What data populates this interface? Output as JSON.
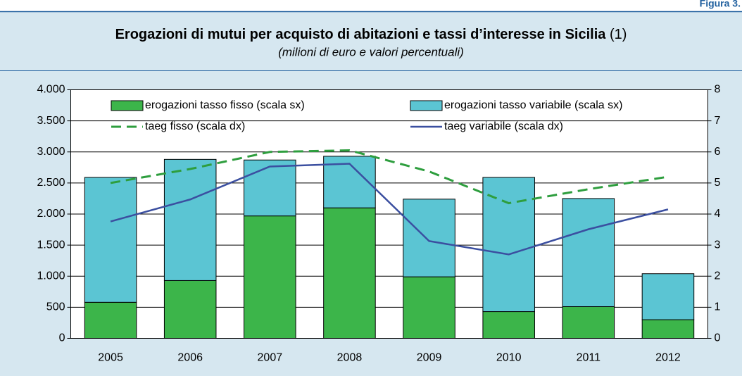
{
  "figure_label": "Figura 3.",
  "chart_data": {
    "type": "bar",
    "stacked": true,
    "title": "Erogazioni di mutui per acquisto di abitazioni e tassi d’interesse in Sicilia",
    "title_note": "(1)",
    "subtitle": "(milioni di euro e valori percentuali)",
    "categories": [
      "2005",
      "2006",
      "2007",
      "2008",
      "2009",
      "2010",
      "2011",
      "2012"
    ],
    "series": [
      {
        "name": "erogazioni tasso fisso (scala sx)",
        "color": "#3cb54a",
        "values": [
          580,
          930,
          1970,
          2100,
          990,
          430,
          510,
          300
        ]
      },
      {
        "name": "erogazioni tasso variabile (scala sx)",
        "color": "#5bc5d3",
        "values": [
          2010,
          1950,
          900,
          830,
          1250,
          2160,
          1740,
          740
        ]
      },
      {
        "name": "taeg  fisso (scala dx)",
        "color": "#2e9e3e",
        "type": "line",
        "dashed": true,
        "axis": "y2",
        "values": [
          5.0,
          5.45,
          6.0,
          6.05,
          5.37,
          4.35,
          4.8,
          5.2
        ]
      },
      {
        "name": "taeg variabile (scala dx)",
        "color": "#3b4fa0",
        "type": "line",
        "axis": "y2",
        "values": [
          3.76,
          4.47,
          5.53,
          5.62,
          3.13,
          2.7,
          3.51,
          4.15
        ]
      }
    ],
    "ylim": [
      0,
      4000
    ],
    "yticks": [
      0,
      500,
      {
        "value": 1000,
        "label": "1.000"
      },
      {
        "value": 1500,
        "label": "1.500"
      },
      {
        "value": 2000,
        "label": "2.000"
      },
      {
        "value": 2500,
        "label": "2.500"
      },
      {
        "value": 3000,
        "label": "3.000"
      },
      {
        "value": 3500,
        "label": "3.500"
      },
      {
        "value": 4000,
        "label": "4.000"
      }
    ],
    "y2lim": [
      0,
      8
    ],
    "y2ticks": [
      0,
      1,
      2,
      3,
      4,
      5,
      6,
      7,
      8
    ],
    "grid": true
  }
}
